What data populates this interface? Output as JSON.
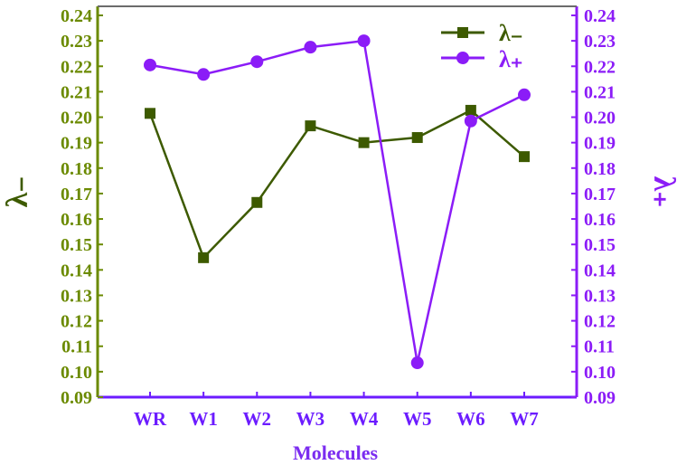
{
  "chart_data": {
    "type": "line",
    "categories": [
      "WR",
      "W1",
      "W2",
      "W3",
      "W4",
      "W5",
      "W6",
      "W7"
    ],
    "series": [
      {
        "name": "λ₋",
        "axis": "left",
        "marker": "square",
        "color": "#3d5a00",
        "values": [
          0.2015,
          0.1448,
          0.1665,
          0.1966,
          0.19,
          0.192,
          0.2027,
          0.1845
        ]
      },
      {
        "name": "λ₊",
        "axis": "right",
        "marker": "circle",
        "color": "#8b1cf7",
        "values": [
          0.2205,
          0.2168,
          0.2218,
          0.2275,
          0.23,
          0.1035,
          0.1985,
          0.2088
        ]
      }
    ],
    "xlabel": "Molecules",
    "ylabel_left": "λ₋",
    "ylabel_right": "λ₊",
    "ylim": [
      0.09,
      0.24
    ],
    "yticks": [
      "0.09",
      "0.10",
      "0.11",
      "0.12",
      "0.13",
      "0.14",
      "0.15",
      "0.16",
      "0.17",
      "0.18",
      "0.19",
      "0.20",
      "0.21",
      "0.22",
      "0.23",
      "0.24"
    ],
    "legend_position": "top-right",
    "grid": false,
    "colors": {
      "left_axis": "#6b8a00",
      "right_axis": "#8b1cf7",
      "bottom_axis": "#6c1cff",
      "xlabel": "#7b2cf0"
    }
  }
}
